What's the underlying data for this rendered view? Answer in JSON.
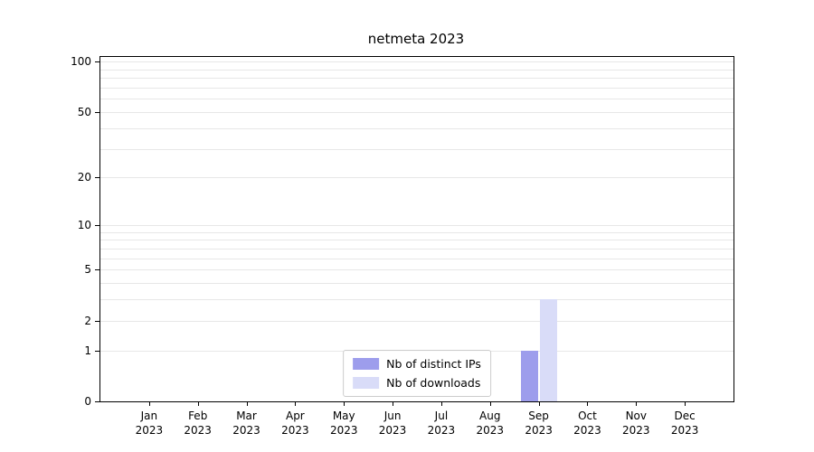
{
  "title": "netmeta 2023",
  "colors": {
    "distinct_ips": "#9d9dec",
    "downloads": "#d9dcf8",
    "grid": "#e7e7e7",
    "axis": "#000000"
  },
  "chart_data": {
    "type": "bar",
    "title": "netmeta 2023",
    "scale": "log1p",
    "categories": [
      "Jan",
      "Feb",
      "Mar",
      "Apr",
      "May",
      "Jun",
      "Jul",
      "Aug",
      "Sep",
      "Oct",
      "Nov",
      "Dec"
    ],
    "x_label_line2": "2023",
    "y_ticks": [
      0,
      1,
      2,
      5,
      10,
      20,
      50,
      100
    ],
    "gridlines": [
      1,
      2,
      3,
      4,
      5,
      6,
      7,
      8,
      9,
      10,
      20,
      30,
      40,
      50,
      60,
      70,
      80,
      90,
      100
    ],
    "ylim": [
      0,
      107
    ],
    "grid": true,
    "legend_position": "bottom-center",
    "series": [
      {
        "name": "Nb of distinct IPs",
        "color": "#9d9dec",
        "values": [
          0,
          0,
          0,
          0,
          0,
          0,
          0,
          0,
          1,
          0,
          0,
          0
        ]
      },
      {
        "name": "Nb of downloads",
        "color": "#d9dcf8",
        "values": [
          0,
          0,
          0,
          0,
          0,
          0,
          0,
          0,
          3,
          0,
          0,
          0
        ]
      }
    ]
  }
}
